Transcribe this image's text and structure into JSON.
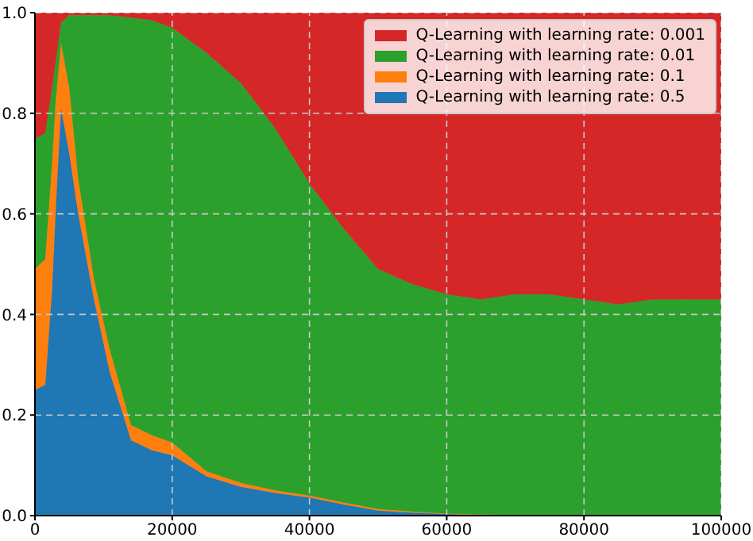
{
  "chart_data": {
    "type": "area",
    "stacked": true,
    "x": [
      0,
      1500,
      2500,
      3000,
      3800,
      5000,
      6300,
      8600,
      10900,
      14000,
      17000,
      20000,
      25000,
      30000,
      35000,
      40000,
      45000,
      50000,
      55000,
      60000,
      65000,
      70000,
      75000,
      80000,
      85000,
      90000,
      95000,
      100000
    ],
    "series": [
      {
        "name": "Q-Learning with learning rate: 0.5",
        "color": "#1f77b4",
        "values": [
          0.25,
          0.26,
          0.45,
          0.6,
          0.81,
          0.72,
          0.6,
          0.43,
          0.285,
          0.15,
          0.13,
          0.12,
          0.078,
          0.057,
          0.045,
          0.036,
          0.022,
          0.01,
          0.006,
          0.003,
          0.001,
          0,
          0,
          0,
          0,
          0,
          0,
          0
        ]
      },
      {
        "name": "Q-Learning with learning rate: 0.1",
        "color": "#ff7f0e",
        "values": [
          0.24,
          0.25,
          0.25,
          0.22,
          0.13,
          0.13,
          0.07,
          0.04,
          0.045,
          0.03,
          0.03,
          0.025,
          0.01,
          0.008,
          0.005,
          0.004,
          0.004,
          0.003,
          0.002,
          0.001,
          0.001,
          0.001,
          0,
          0,
          0,
          0,
          0,
          0
        ]
      },
      {
        "name": "Q-Learning with learning rate: 0.01",
        "color": "#2ca02c",
        "values": [
          0.26,
          0.25,
          0.15,
          0.08,
          0.04,
          0.145,
          0.325,
          0.525,
          0.665,
          0.81,
          0.825,
          0.825,
          0.832,
          0.795,
          0.72,
          0.62,
          0.544,
          0.477,
          0.452,
          0.436,
          0.428,
          0.439,
          0.44,
          0.43,
          0.42,
          0.43,
          0.43,
          0.43
        ]
      },
      {
        "name": "Q-Learning with learning rate: 0.001",
        "color": "#d62728",
        "values": [
          0.25,
          0.24,
          0.15,
          0.1,
          0.02,
          0.005,
          0.005,
          0.005,
          0.005,
          0.01,
          0.015,
          0.03,
          0.08,
          0.14,
          0.23,
          0.34,
          0.43,
          0.51,
          0.54,
          0.56,
          0.57,
          0.56,
          0.56,
          0.57,
          0.58,
          0.57,
          0.57,
          0.57
        ]
      }
    ],
    "xlim": [
      0,
      100000
    ],
    "xticks": [
      0,
      20000,
      40000,
      60000,
      80000,
      100000
    ],
    "ylim": [
      0,
      1
    ],
    "yticks": [
      {
        "value": 0,
        "label": "0.0"
      },
      {
        "value": 0.2,
        "label": "0.2"
      },
      {
        "value": 0.4,
        "label": "0.4"
      },
      {
        "value": 0.6,
        "label": "0.6"
      },
      {
        "value": 0.8,
        "label": "0.8"
      },
      {
        "value": 1,
        "label": "1.0"
      }
    ],
    "grid": true,
    "legend": "top right"
  }
}
